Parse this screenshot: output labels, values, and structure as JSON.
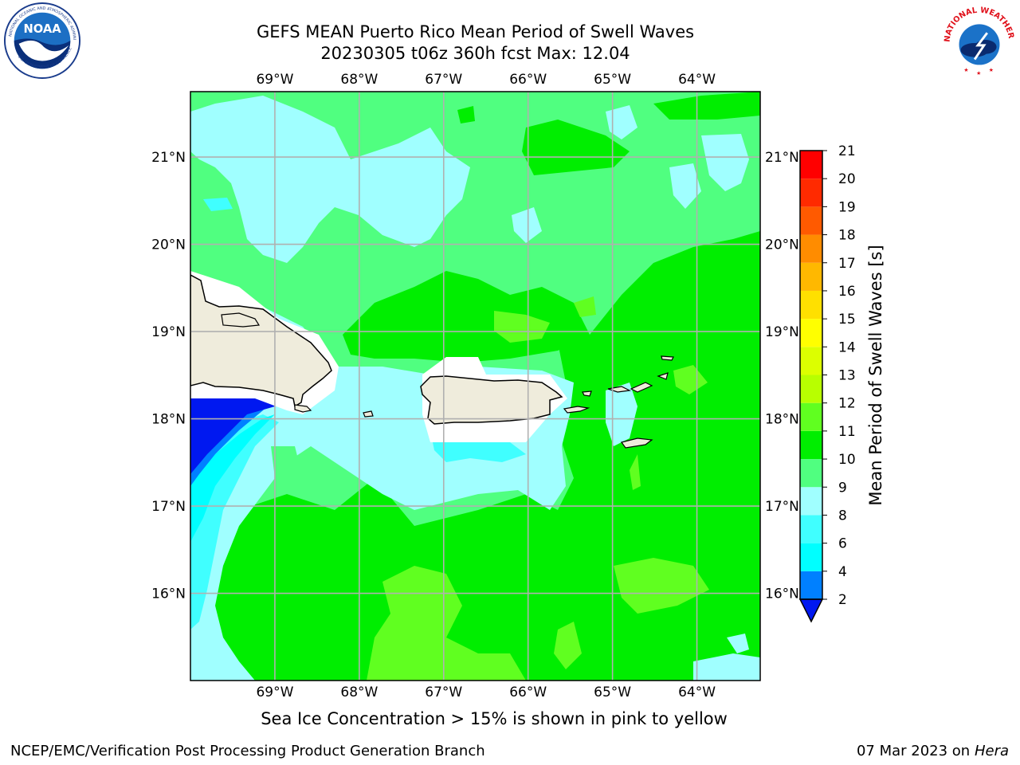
{
  "header": {
    "title_line1": "GEFS MEAN Puerto Rico Mean Period of Swell Waves",
    "title_line2": "20230305 t06z 360h fcst   Max: 12.04"
  },
  "logos": {
    "left": "NOAA",
    "right": "NATIONAL WEATHER SERVICE"
  },
  "map": {
    "lon_labels": [
      "69°W",
      "68°W",
      "67°W",
      "66°W",
      "65°W",
      "64°W"
    ],
    "lat_labels": [
      "21°N",
      "20°N",
      "19°N",
      "18°N",
      "17°N",
      "16°N"
    ],
    "extent": {
      "lon_min": -70.0,
      "lon_max": -63.25,
      "lat_min": 15.0,
      "lat_max": 21.75
    },
    "colors": {
      "land": "#efecdc",
      "grid": "#b0b0b0",
      "coast": "#000000"
    }
  },
  "colorbar": {
    "label": "Mean Period of Swell Waves [s]",
    "ticks": [
      "2",
      "4",
      "6",
      "8",
      "9",
      "10",
      "11",
      "12",
      "13",
      "14",
      "15",
      "16",
      "17",
      "18",
      "19",
      "20",
      "21"
    ],
    "colors": [
      "#0018f0",
      "#0080ff",
      "#00ffff",
      "#40ffff",
      "#a0ffff",
      "#50ff80",
      "#00ee00",
      "#60ff20",
      "#b8ff00",
      "#dcff00",
      "#ffff00",
      "#ffe000",
      "#ffb800",
      "#ff8c00",
      "#ff5a00",
      "#ff2a00",
      "#ff0000"
    ]
  },
  "footer": {
    "note": "Sea Ice Concentration > 15% is shown in pink to yellow",
    "credit_left": "NCEP/EMC/Verification Post Processing Product Generation Branch",
    "date": "07 Mar 2023 on",
    "host": "Hera"
  }
}
